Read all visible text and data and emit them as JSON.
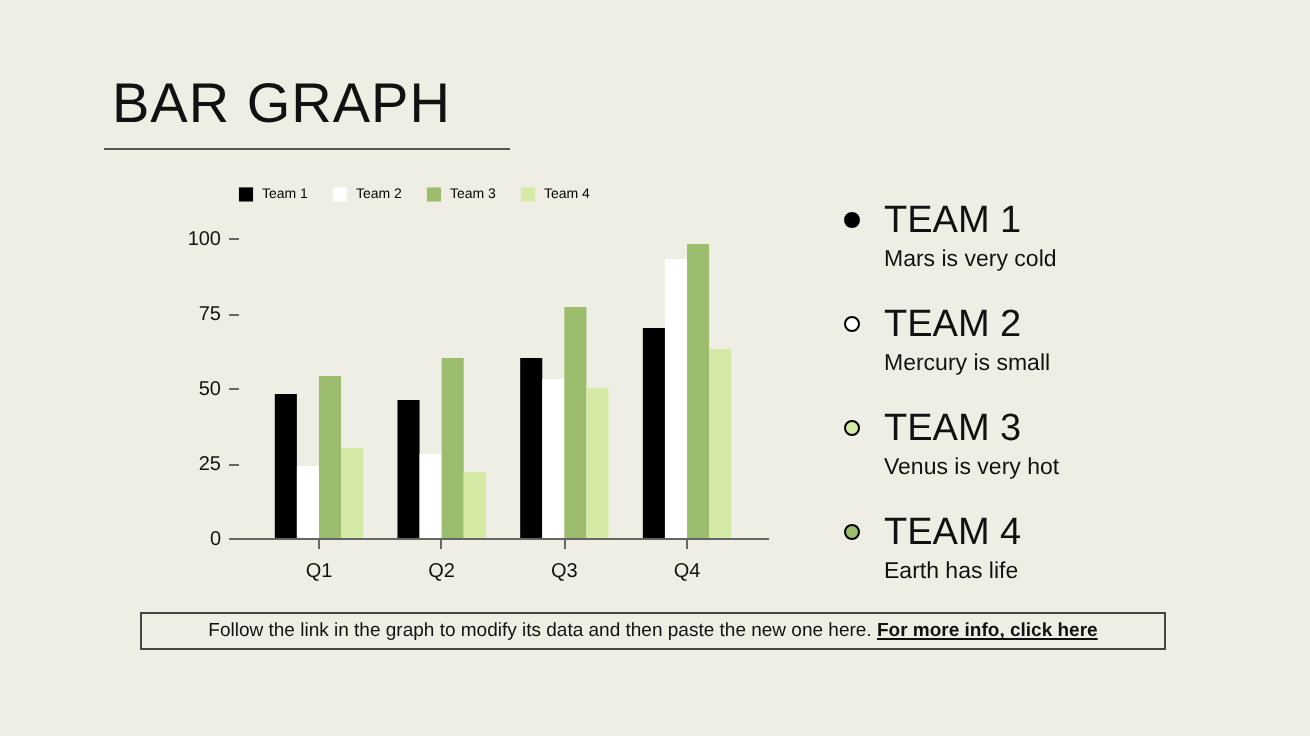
{
  "chart_data": {
    "type": "bar",
    "title": "BAR GRAPH",
    "categories": [
      "Q1",
      "Q2",
      "Q3",
      "Q4"
    ],
    "series": [
      {
        "name": "Team 1",
        "color": "#000000",
        "values": [
          48,
          46,
          60,
          70
        ]
      },
      {
        "name": "Team 2",
        "color": "#ffffff",
        "values": [
          24,
          28,
          53,
          93
        ]
      },
      {
        "name": "Team 3",
        "color": "#9dbd6e",
        "values": [
          54,
          60,
          77,
          98
        ]
      },
      {
        "name": "Team 4",
        "color": "#d4eaa5",
        "values": [
          30,
          22,
          50,
          63
        ]
      }
    ],
    "ylim": [
      0,
      100
    ],
    "yticks": [
      0,
      25,
      50,
      75,
      100
    ],
    "grid": false,
    "legend": "top",
    "annotations": [
      "TEAM 1",
      "Mars is very cold",
      "TEAM 2",
      "Mercury is small",
      "TEAM 3",
      "Venus is very hot",
      "TEAM 4",
      "Earth has life",
      "Follow the link in the graph to modify its data and then paste the new one here.",
      "For more info, click here"
    ]
  }
}
